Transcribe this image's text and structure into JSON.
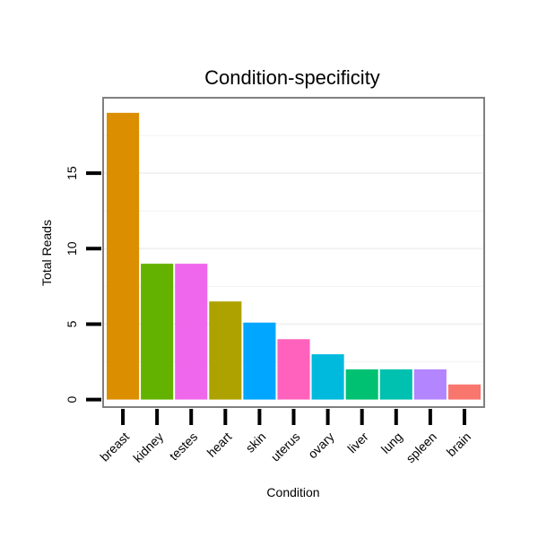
{
  "chart_data": {
    "type": "bar",
    "title": "Condition-specificity",
    "xlabel": "Condition",
    "ylabel": "Total Reads",
    "categories": [
      "breast",
      "kidney",
      "testes",
      "heart",
      "skin",
      "uterus",
      "ovary",
      "liver",
      "lung",
      "spleen",
      "brain"
    ],
    "values": [
      19,
      9,
      9,
      6.5,
      5.1,
      4,
      3,
      2,
      2,
      2,
      1
    ],
    "colors": [
      "#DB8E00",
      "#64B200",
      "#EF67EB",
      "#AEA200",
      "#00A6FF",
      "#FF62BC",
      "#00BADE",
      "#00C172",
      "#00C0B0",
      "#B385FF",
      "#F8766D"
    ],
    "ylim": [
      -0.5,
      20
    ],
    "yticks": [
      0,
      5,
      10,
      15
    ],
    "ytick_labels": [
      "0",
      "5",
      "10",
      "15"
    ],
    "grid": true,
    "legend": "none"
  }
}
